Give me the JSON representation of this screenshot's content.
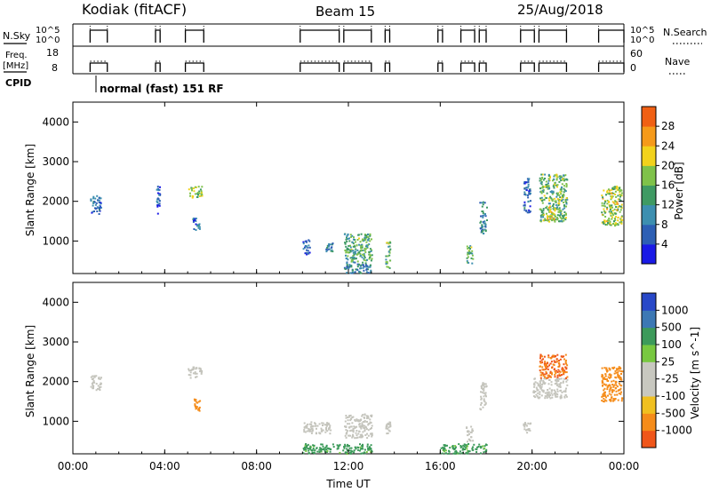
{
  "header": {
    "station": "Kodiak (fitACF)",
    "beam": "Beam 15",
    "date": "25/Aug/2018"
  },
  "strip_labels": {
    "nsky": "N.Sky",
    "freq_line1": "Freq.",
    "freq_line2": "[MHz]",
    "cpid": "CPID",
    "nsearch": "N.Search",
    "nave": "Nave",
    "nsky_top_tick": "10^5",
    "nsky_bottom_tick": "10^0",
    "freq_top_tick": "18",
    "freq_bottom_tick": "8",
    "nave_top_tick": "60",
    "nave_bottom_tick": "0",
    "nsearch_top_tick": "10^5",
    "nsearch_bottom_tick": "10^0",
    "cpid_text": "normal (fast)  151  RF"
  },
  "colors": {
    "power_scale": [
      "#1a1ae6",
      "#2d5fb4",
      "#3d8fb0",
      "#3f9a63",
      "#7fc24a",
      "#f2d21c",
      "#f59a1a",
      "#f06014",
      "#e82020"
    ],
    "velocity_scale": [
      "#e81616",
      "#f0561a",
      "#f58c1a",
      "#f0c020",
      "#c8c8c0",
      "#c8c8c0",
      "#78c840",
      "#3c9a5a",
      "#3c78b4",
      "#2848c8"
    ],
    "ground_scatter": "#c4c4bc"
  },
  "chart_data": [
    {
      "type": "heatmap",
      "name": "power",
      "ylabel": "Slant Range [km]",
      "xlabel": "",
      "colorbar_label": "Power [dB]",
      "colorbar_ticks": [
        "4",
        "8",
        "12",
        "16",
        "20",
        "24",
        "28"
      ],
      "x_ticks": [
        "00:00",
        "04:00",
        "08:00",
        "12:00",
        "16:00",
        "20:00",
        "00:00"
      ],
      "y_ticks": [
        "1000",
        "2000",
        "3000",
        "4000"
      ],
      "xlim": [
        0,
        24
      ],
      "ylim": [
        180,
        4500
      ],
      "regions": [
        {
          "t0": 0.75,
          "t1": 1.2,
          "r0": 1700,
          "r1": 2200,
          "v": 7
        },
        {
          "t0": 3.6,
          "t1": 3.8,
          "r0": 1700,
          "r1": 2400,
          "v": 5
        },
        {
          "t0": 5.0,
          "t1": 5.6,
          "r0": 2100,
          "r1": 2400,
          "v": 16
        },
        {
          "t0": 5.2,
          "t1": 5.5,
          "r0": 1250,
          "r1": 1600,
          "v": 6
        },
        {
          "t0": 10.0,
          "t1": 10.3,
          "r0": 650,
          "r1": 1050,
          "v": 6
        },
        {
          "t0": 11.0,
          "t1": 11.3,
          "r0": 750,
          "r1": 1000,
          "v": 9
        },
        {
          "t0": 11.8,
          "t1": 13.0,
          "r0": 500,
          "r1": 1200,
          "v": 13
        },
        {
          "t0": 11.8,
          "t1": 13.0,
          "r0": 200,
          "r1": 500,
          "v": 9
        },
        {
          "t0": 13.6,
          "t1": 13.8,
          "r0": 300,
          "r1": 1000,
          "v": 14
        },
        {
          "t0": 17.1,
          "t1": 17.4,
          "r0": 450,
          "r1": 900,
          "v": 13
        },
        {
          "t0": 17.7,
          "t1": 18.0,
          "r0": 1200,
          "r1": 2000,
          "v": 9
        },
        {
          "t0": 19.6,
          "t1": 19.9,
          "r0": 1700,
          "r1": 2600,
          "v": 7
        },
        {
          "t0": 20.3,
          "t1": 21.5,
          "r0": 1500,
          "r1": 2700,
          "v": 14
        },
        {
          "t0": 20.6,
          "t1": 21.0,
          "r0": 1500,
          "r1": 1900,
          "v": 20
        },
        {
          "t0": 23.0,
          "t1": 23.9,
          "r0": 1400,
          "r1": 2400,
          "v": 17
        }
      ]
    },
    {
      "type": "heatmap",
      "name": "velocity",
      "ylabel": "Slant Range [km]",
      "xlabel": "Time UT",
      "colorbar_label": "Velocity [m s^-1]",
      "colorbar_ticks": [
        "-1000",
        "-500",
        "-100",
        "-25",
        "25",
        "100",
        "500",
        "1000"
      ],
      "x_ticks": [
        "00:00",
        "04:00",
        "08:00",
        "12:00",
        "16:00",
        "20:00",
        "00:00"
      ],
      "y_ticks": [
        "1000",
        "2000",
        "3000",
        "4000"
      ],
      "xlim": [
        0,
        24
      ],
      "ylim": [
        180,
        4500
      ],
      "regions": [
        {
          "t0": 0.75,
          "t1": 1.2,
          "r0": 1800,
          "r1": 2200,
          "v": 0
        },
        {
          "t0": 5.0,
          "t1": 5.6,
          "r0": 2100,
          "r1": 2400,
          "v": 0
        },
        {
          "t0": 5.2,
          "t1": 5.5,
          "r0": 1250,
          "r1": 1600,
          "v": -200
        },
        {
          "t0": 10.0,
          "t1": 11.2,
          "r0": 700,
          "r1": 1000,
          "v": 0
        },
        {
          "t0": 11.8,
          "t1": 13.0,
          "r0": 600,
          "r1": 1200,
          "v": 0
        },
        {
          "t0": 13.6,
          "t1": 13.8,
          "r0": 700,
          "r1": 1000,
          "v": 0
        },
        {
          "t0": 17.1,
          "t1": 17.4,
          "r0": 500,
          "r1": 900,
          "v": 0
        },
        {
          "t0": 17.7,
          "t1": 18.0,
          "r0": 1300,
          "r1": 2000,
          "v": 0
        },
        {
          "t0": 19.6,
          "t1": 19.9,
          "r0": 700,
          "r1": 1000,
          "v": 0
        },
        {
          "t0": 20.0,
          "t1": 21.5,
          "r0": 1600,
          "r1": 2100,
          "v": 0
        },
        {
          "t0": 20.3,
          "t1": 21.5,
          "r0": 2100,
          "r1": 2700,
          "v": -500
        },
        {
          "t0": 23.0,
          "t1": 23.9,
          "r0": 1500,
          "r1": 2400,
          "v": -300
        },
        {
          "t0": 10.0,
          "t1": 13.0,
          "r0": 200,
          "r1": 450,
          "v": 150
        },
        {
          "t0": 16.0,
          "t1": 18.0,
          "r0": 200,
          "r1": 450,
          "v": 150
        }
      ]
    }
  ],
  "operation": {
    "on_intervals": [
      [
        0.75,
        1.5
      ],
      [
        3.6,
        3.8
      ],
      [
        4.9,
        5.7
      ],
      [
        9.9,
        11.6
      ],
      [
        11.8,
        13.0
      ],
      [
        13.6,
        13.8
      ],
      [
        15.9,
        16.1
      ],
      [
        16.9,
        17.5
      ],
      [
        17.7,
        18.0
      ],
      [
        19.5,
        20.1
      ],
      [
        20.3,
        21.5
      ],
      [
        22.9,
        24.0
      ]
    ]
  }
}
